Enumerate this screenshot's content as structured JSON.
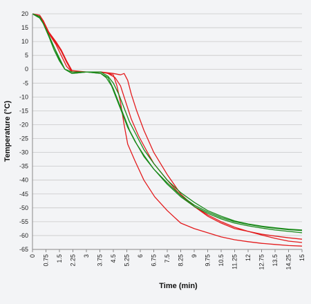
{
  "chart_data": {
    "type": "line",
    "xlabel": "Time (min)",
    "ylabel": "Temperature (°C)",
    "xlim": [
      0,
      15
    ],
    "ylim": [
      -65,
      20
    ],
    "x_ticks": [
      "0",
      "0.75",
      "1.5",
      "2.25",
      "3",
      "3.75",
      "4.5",
      "5.25",
      "6",
      "6.75",
      "7.5",
      "8.25",
      "9",
      "9.75",
      "10.5",
      "11.25",
      "12",
      "12.75",
      "13.5",
      "14.25",
      "15"
    ],
    "y_ticks": [
      "20",
      "15",
      "10",
      "5",
      "0",
      "-5",
      "-10",
      "-15",
      "-20",
      "-25",
      "-30",
      "-35",
      "-40",
      "-45",
      "-50",
      "-55",
      "-60",
      "-65"
    ],
    "grid": true,
    "legend": "none",
    "series": [
      {
        "color": "#e31a1c",
        "points": [
          [
            0,
            20
          ],
          [
            0.4,
            19
          ],
          [
            0.6,
            17
          ],
          [
            0.9,
            13
          ],
          [
            1.3,
            9
          ],
          [
            1.6,
            5
          ],
          [
            1.9,
            1
          ],
          [
            2.2,
            -1
          ],
          [
            3,
            -1
          ],
          [
            3.8,
            -1
          ],
          [
            4.2,
            -1.5
          ],
          [
            4.5,
            -2
          ],
          [
            4.7,
            -6
          ],
          [
            4.9,
            -12
          ],
          [
            5.1,
            -20
          ],
          [
            5.3,
            -27
          ],
          [
            5.7,
            -33
          ],
          [
            6.2,
            -40
          ],
          [
            6.8,
            -46
          ],
          [
            7.5,
            -51
          ],
          [
            8.25,
            -55.5
          ],
          [
            9,
            -57.5
          ],
          [
            9.75,
            -59
          ],
          [
            10.5,
            -60.5
          ],
          [
            11.25,
            -61.5
          ],
          [
            12,
            -62.2
          ],
          [
            12.75,
            -62.8
          ],
          [
            13.5,
            -63.2
          ],
          [
            14.25,
            -63.6
          ],
          [
            15,
            -63.8
          ]
        ]
      },
      {
        "color": "#e31a1c",
        "points": [
          [
            0,
            20
          ],
          [
            0.4,
            19.5
          ],
          [
            0.6,
            17.5
          ],
          [
            0.9,
            13.5
          ],
          [
            1.3,
            10
          ],
          [
            1.6,
            7
          ],
          [
            1.9,
            3
          ],
          [
            2.2,
            -0.5
          ],
          [
            3,
            -1
          ],
          [
            3.8,
            -1
          ],
          [
            4.5,
            -1.5
          ],
          [
            4.9,
            -2
          ],
          [
            5.1,
            -1.5
          ],
          [
            5.3,
            -4
          ],
          [
            5.5,
            -9
          ],
          [
            5.8,
            -15
          ],
          [
            6.2,
            -22
          ],
          [
            6.75,
            -30
          ],
          [
            7.5,
            -38
          ],
          [
            8.25,
            -45
          ],
          [
            9,
            -49.5
          ],
          [
            9.75,
            -53
          ],
          [
            10.5,
            -55.5
          ],
          [
            11.25,
            -57.5
          ],
          [
            12,
            -58.5
          ],
          [
            12.75,
            -59.5
          ],
          [
            13.5,
            -60.2
          ],
          [
            14.25,
            -60.8
          ],
          [
            15,
            -61.3
          ]
        ]
      },
      {
        "color": "#e31a1c",
        "points": [
          [
            0,
            20
          ],
          [
            0.4,
            19
          ],
          [
            0.6,
            17.5
          ],
          [
            0.9,
            13.5
          ],
          [
            1.2,
            10.5
          ],
          [
            1.6,
            6.5
          ],
          [
            1.9,
            2.5
          ],
          [
            2.2,
            -1
          ],
          [
            3,
            -1
          ],
          [
            3.8,
            -1
          ],
          [
            4.2,
            -1.5
          ],
          [
            4.6,
            -3
          ],
          [
            4.9,
            -6
          ],
          [
            5.2,
            -12
          ],
          [
            5.5,
            -18
          ],
          [
            5.9,
            -24
          ],
          [
            6.4,
            -30
          ],
          [
            6.75,
            -34
          ],
          [
            7.5,
            -40
          ],
          [
            8.25,
            -45.5
          ],
          [
            9,
            -49.5
          ],
          [
            9.75,
            -52.5
          ],
          [
            10.5,
            -55
          ],
          [
            11.25,
            -57
          ],
          [
            12,
            -58.5
          ],
          [
            12.75,
            -59.8
          ],
          [
            13.5,
            -61
          ],
          [
            14.25,
            -62
          ],
          [
            15,
            -62.5
          ]
        ]
      },
      {
        "color": "#1b8a1b",
        "points": [
          [
            0,
            20
          ],
          [
            0.4,
            18.5
          ],
          [
            0.6,
            16.5
          ],
          [
            0.9,
            12
          ],
          [
            1.2,
            8
          ],
          [
            1.5,
            4
          ],
          [
            1.8,
            0
          ],
          [
            2.2,
            -1.5
          ],
          [
            3,
            -1
          ],
          [
            3.8,
            -1.5
          ],
          [
            4.1,
            -3
          ],
          [
            4.4,
            -6
          ],
          [
            4.7,
            -11
          ],
          [
            5,
            -16
          ],
          [
            5.3,
            -21
          ],
          [
            5.7,
            -26
          ],
          [
            6.2,
            -31
          ],
          [
            6.75,
            -36
          ],
          [
            7.5,
            -41.5
          ],
          [
            8.25,
            -46
          ],
          [
            9,
            -49.5
          ],
          [
            9.75,
            -52
          ],
          [
            10.5,
            -54
          ],
          [
            11.25,
            -55.5
          ],
          [
            12,
            -56.5
          ],
          [
            12.75,
            -57.3
          ],
          [
            13.5,
            -58
          ],
          [
            14.25,
            -58.5
          ],
          [
            15,
            -59
          ]
        ]
      },
      {
        "color": "#1b8a1b",
        "points": [
          [
            0,
            20
          ],
          [
            0.4,
            18.5
          ],
          [
            0.6,
            16.5
          ],
          [
            0.9,
            12
          ],
          [
            1.2,
            7
          ],
          [
            1.5,
            3
          ],
          [
            1.8,
            0
          ],
          [
            2.2,
            -1
          ],
          [
            3,
            -1
          ],
          [
            3.8,
            -1
          ],
          [
            4.2,
            -2.5
          ],
          [
            4.5,
            -5
          ],
          [
            4.8,
            -9
          ],
          [
            5.1,
            -14
          ],
          [
            5.4,
            -19
          ],
          [
            5.8,
            -24
          ],
          [
            6.2,
            -29
          ],
          [
            6.75,
            -34
          ],
          [
            7.5,
            -40
          ],
          [
            8.25,
            -44.5
          ],
          [
            9,
            -48
          ],
          [
            9.75,
            -51
          ],
          [
            10.5,
            -53
          ],
          [
            11.25,
            -54.7
          ],
          [
            12,
            -55.8
          ],
          [
            12.75,
            -56.6
          ],
          [
            13.5,
            -57.2
          ],
          [
            14.25,
            -57.7
          ],
          [
            15,
            -58
          ]
        ]
      },
      {
        "color": "#1b8a1b",
        "points": [
          [
            0,
            20
          ],
          [
            0.4,
            19
          ],
          [
            0.6,
            16.5
          ],
          [
            0.9,
            12.5
          ],
          [
            1.2,
            8
          ],
          [
            1.5,
            3.5
          ],
          [
            1.8,
            0
          ],
          [
            2.2,
            -1.5
          ],
          [
            3,
            -1
          ],
          [
            3.8,
            -1.5
          ],
          [
            4.2,
            -3
          ],
          [
            4.5,
            -7
          ],
          [
            4.8,
            -12
          ],
          [
            5.1,
            -17
          ],
          [
            5.4,
            -22
          ],
          [
            5.8,
            -27
          ],
          [
            6.2,
            -31.5
          ],
          [
            6.75,
            -36
          ],
          [
            7.5,
            -41
          ],
          [
            8.25,
            -45.5
          ],
          [
            9,
            -49
          ],
          [
            9.75,
            -51.5
          ],
          [
            10.5,
            -53.5
          ],
          [
            11.25,
            -55
          ],
          [
            12,
            -56
          ],
          [
            12.75,
            -56.8
          ],
          [
            13.5,
            -57.4
          ],
          [
            14.25,
            -57.9
          ],
          [
            15,
            -58.2
          ]
        ]
      }
    ]
  }
}
